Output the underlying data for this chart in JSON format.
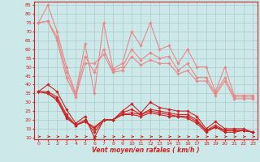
{
  "background_color": "#cde8e8",
  "grid_color": "#aacccc",
  "xlabel": "Vent moyen/en rafales ( km/h )",
  "x_ticks": [
    0,
    1,
    2,
    3,
    4,
    5,
    6,
    7,
    8,
    9,
    10,
    11,
    12,
    13,
    14,
    15,
    16,
    17,
    18,
    19,
    20,
    21,
    22,
    23
  ],
  "ylim": [
    9,
    87
  ],
  "y_ticks": [
    10,
    15,
    20,
    25,
    30,
    35,
    40,
    45,
    50,
    55,
    60,
    65,
    70,
    75,
    80,
    85
  ],
  "series_light": [
    [
      75,
      85,
      70,
      50,
      35,
      63,
      35,
      75,
      49,
      52,
      70,
      62,
      75,
      60,
      62,
      52,
      60,
      50,
      50,
      36,
      50,
      34,
      34,
      34
    ],
    [
      75,
      76,
      67,
      47,
      34,
      56,
      47,
      60,
      48,
      50,
      60,
      54,
      58,
      55,
      56,
      48,
      52,
      44,
      44,
      35,
      44,
      33,
      33,
      33
    ],
    [
      75,
      76,
      65,
      44,
      33,
      52,
      52,
      57,
      47,
      48,
      56,
      51,
      54,
      52,
      52,
      46,
      48,
      42,
      42,
      34,
      42,
      32,
      32,
      32
    ]
  ],
  "series_dark": [
    [
      36,
      40,
      36,
      26,
      18,
      22,
      10,
      20,
      20,
      25,
      29,
      24,
      30,
      27,
      26,
      25,
      25,
      22,
      15,
      19,
      15,
      15,
      15,
      13
    ],
    [
      36,
      36,
      33,
      23,
      17,
      20,
      13,
      20,
      20,
      24,
      26,
      23,
      26,
      25,
      24,
      23,
      23,
      20,
      14,
      17,
      14,
      14,
      14,
      13
    ],
    [
      36,
      35,
      32,
      22,
      17,
      19,
      15,
      20,
      20,
      23,
      24,
      23,
      25,
      24,
      23,
      22,
      22,
      19,
      14,
      16,
      14,
      14,
      14,
      13
    ],
    [
      36,
      35,
      31,
      21,
      17,
      19,
      16,
      20,
      20,
      23,
      23,
      22,
      24,
      23,
      22,
      22,
      21,
      18,
      13,
      16,
      13,
      13,
      14,
      13
    ]
  ],
  "light_color": "#e88888",
  "dark_color": "#cc2222",
  "arrow_color": "#cc2222",
  "xlabel_color": "#cc2222",
  "tick_color": "#cc2222",
  "spine_color": "#cc2222"
}
